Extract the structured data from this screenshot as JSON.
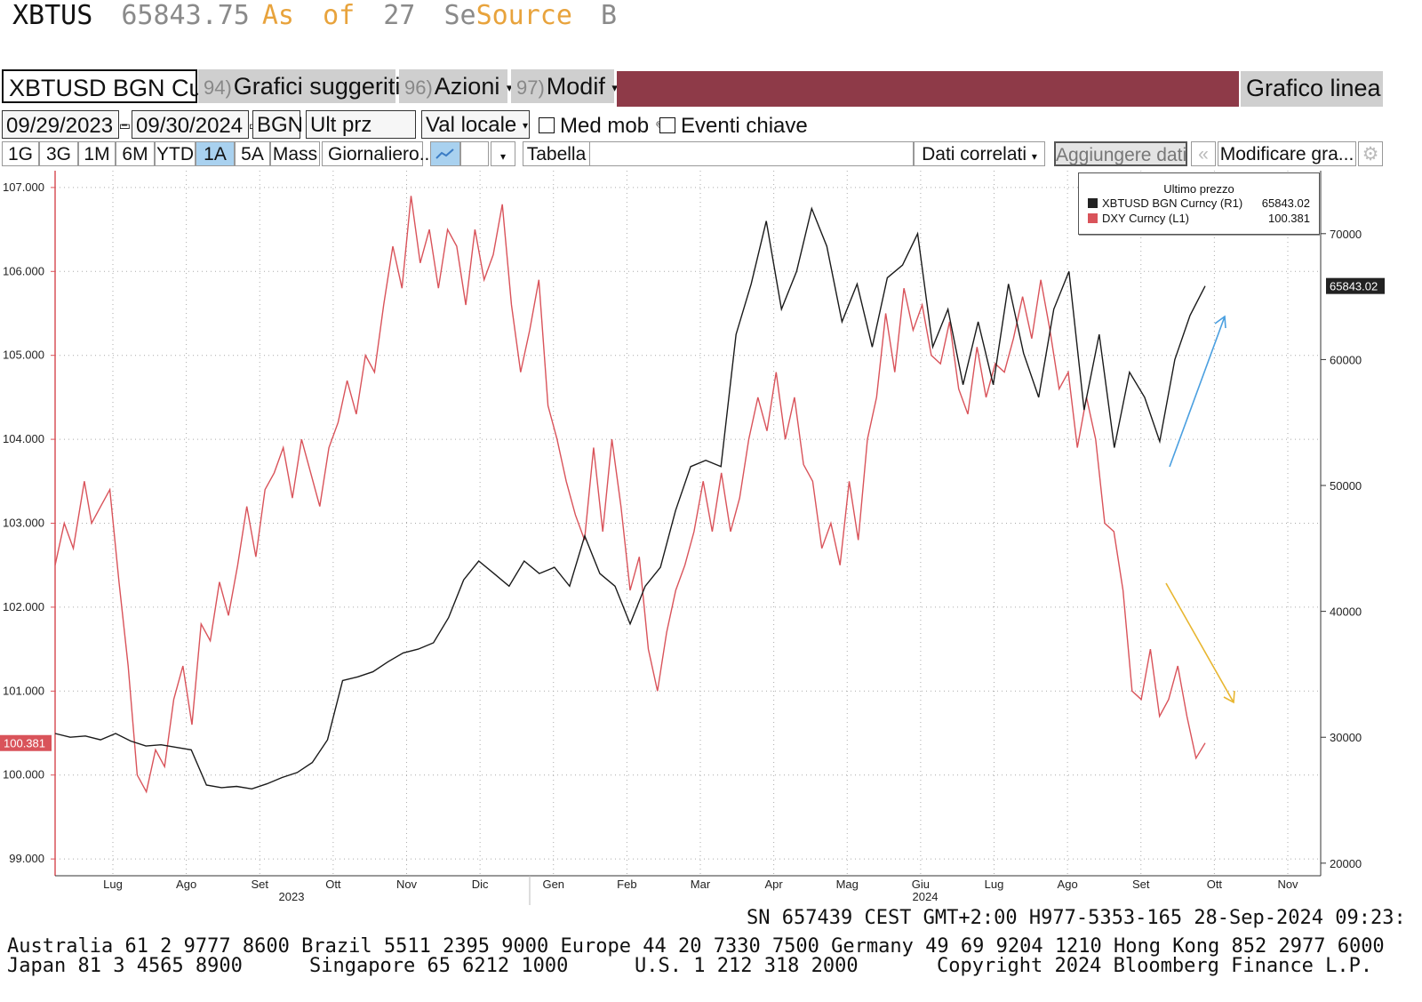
{
  "ticker": {
    "symbol": "XBTUS",
    "price": "65843.75",
    "as": "As",
    "of": "of",
    "day": "27",
    "se": "Se",
    "source": "Source",
    "b": "B"
  },
  "toolbar": {
    "security": "XBTUSD BGN Curncy",
    "suggest_num": "94)",
    "suggest_label": "Grafici suggeriti",
    "azioni_num": "96)",
    "azioni_label": "Azioni",
    "modif_num": "97)",
    "modif_label": "Modif",
    "chart_type": "Grafico linea",
    "start_date": "09/29/2023",
    "date_sep": "-",
    "end_date": "09/30/2024",
    "source": "BGN",
    "field": "Ult prz",
    "currency": "Val locale",
    "moving_avg": "Med mob",
    "key_events": "Eventi chiave",
    "ranges": [
      "1G",
      "3G",
      "1M",
      "6M",
      "YTD",
      "1A",
      "5A",
      "Mass"
    ],
    "selected_range": "1A",
    "period": "Giornaliero...",
    "table": "Tabella",
    "related": "Dati correlati",
    "add_data": "Aggiungere dati",
    "edit_chart": "Modificare gra..."
  },
  "legend": {
    "title": "Ultimo prezzo",
    "items": [
      {
        "label": "XBTUSD BGN Curncy  (R1)",
        "value": "65843.02",
        "color": "#222222"
      },
      {
        "label": "DXY Curncy  (L1)",
        "value": "100.381",
        "color": "#d9535a"
      }
    ]
  },
  "chart_data": {
    "type": "line",
    "left_axis": {
      "ticks": [
        "107.000",
        "106.000",
        "105.000",
        "104.000",
        "103.000",
        "102.000",
        "101.000",
        "100.000",
        "99.000"
      ],
      "range": [
        98.8,
        107.2
      ],
      "last_label": "100.381",
      "last_value": 100.381
    },
    "right_axis": {
      "ticks": [
        "70000",
        "60000",
        "50000",
        "40000",
        "30000",
        "20000"
      ],
      "range": [
        19000,
        75000
      ],
      "last_label": "65843.02",
      "last_value": 65843.02
    },
    "months": [
      "Lug",
      "Ago",
      "Set",
      "Ott",
      "Nov",
      "Dic",
      "Gen",
      "Feb",
      "Mar",
      "Apr",
      "Mag",
      "Giu",
      "Lug",
      "Ago",
      "Set",
      "Ott",
      "Nov"
    ],
    "years": [
      "2023",
      "2024"
    ],
    "grid": true,
    "legend_position": "top-right",
    "series": [
      {
        "name": "DXY Curncy",
        "color": "#d9535a",
        "axis": "left",
        "points": [
          [
            0,
            102.5
          ],
          [
            0.5,
            103.0
          ],
          [
            1,
            102.7
          ],
          [
            1.6,
            103.5
          ],
          [
            2,
            103.0
          ],
          [
            2.5,
            103.2
          ],
          [
            3,
            103.4
          ],
          [
            3.5,
            102.3
          ],
          [
            4,
            101.3
          ],
          [
            4.5,
            100.0
          ],
          [
            5,
            99.8
          ],
          [
            5.5,
            100.3
          ],
          [
            6,
            100.1
          ],
          [
            6.5,
            100.9
          ],
          [
            7,
            101.3
          ],
          [
            7.5,
            100.6
          ],
          [
            8,
            101.8
          ],
          [
            8.5,
            101.6
          ],
          [
            9,
            102.3
          ],
          [
            9.5,
            101.9
          ],
          [
            10,
            102.5
          ],
          [
            10.5,
            103.2
          ],
          [
            11,
            102.6
          ],
          [
            11.5,
            103.4
          ],
          [
            12,
            103.6
          ],
          [
            12.5,
            103.9
          ],
          [
            13,
            103.3
          ],
          [
            13.5,
            104.0
          ],
          [
            14,
            103.6
          ],
          [
            14.5,
            103.2
          ],
          [
            15,
            103.9
          ],
          [
            15.5,
            104.2
          ],
          [
            16,
            104.7
          ],
          [
            16.5,
            104.3
          ],
          [
            17,
            105.0
          ],
          [
            17.5,
            104.8
          ],
          [
            18,
            105.6
          ],
          [
            18.5,
            106.3
          ],
          [
            19,
            105.8
          ],
          [
            19.5,
            106.9
          ],
          [
            20,
            106.1
          ],
          [
            20.5,
            106.5
          ],
          [
            21,
            105.8
          ],
          [
            21.5,
            106.5
          ],
          [
            22,
            106.3
          ],
          [
            22.5,
            105.6
          ],
          [
            23,
            106.5
          ],
          [
            23.5,
            105.9
          ],
          [
            24,
            106.2
          ],
          [
            24.5,
            106.8
          ],
          [
            25,
            105.6
          ],
          [
            25.5,
            104.8
          ],
          [
            26,
            105.3
          ],
          [
            26.5,
            105.9
          ],
          [
            27,
            104.4
          ],
          [
            27.5,
            104.0
          ],
          [
            28,
            103.5
          ],
          [
            28.5,
            103.1
          ],
          [
            29,
            102.8
          ],
          [
            29.5,
            103.9
          ],
          [
            30,
            102.9
          ],
          [
            30.5,
            104.0
          ],
          [
            31,
            103.2
          ],
          [
            31.5,
            102.2
          ],
          [
            32,
            102.6
          ],
          [
            32.5,
            101.5
          ],
          [
            33,
            101.0
          ],
          [
            33.5,
            101.7
          ],
          [
            34,
            102.2
          ],
          [
            34.5,
            102.5
          ],
          [
            35,
            102.9
          ],
          [
            35.5,
            103.5
          ],
          [
            36,
            102.9
          ],
          [
            36.5,
            103.6
          ],
          [
            37,
            102.9
          ],
          [
            37.5,
            103.3
          ],
          [
            38,
            104.0
          ],
          [
            38.5,
            104.5
          ],
          [
            39,
            104.1
          ],
          [
            39.5,
            104.8
          ],
          [
            40,
            104.0
          ],
          [
            40.5,
            104.5
          ],
          [
            41,
            103.7
          ],
          [
            41.5,
            103.5
          ],
          [
            42,
            102.7
          ],
          [
            42.5,
            103.0
          ],
          [
            43,
            102.5
          ],
          [
            43.5,
            103.5
          ],
          [
            44,
            102.8
          ],
          [
            44.5,
            104.0
          ],
          [
            45,
            104.5
          ],
          [
            45.5,
            105.5
          ],
          [
            46,
            104.8
          ],
          [
            46.5,
            105.8
          ],
          [
            47,
            105.3
          ],
          [
            47.5,
            105.6
          ],
          [
            48,
            105.0
          ],
          [
            48.5,
            104.9
          ],
          [
            49,
            105.4
          ],
          [
            49.5,
            104.6
          ],
          [
            50,
            104.3
          ],
          [
            50.5,
            105.1
          ],
          [
            51,
            104.5
          ],
          [
            51.5,
            104.9
          ],
          [
            52,
            104.8
          ],
          [
            52.5,
            105.2
          ],
          [
            53,
            105.7
          ],
          [
            53.5,
            105.2
          ],
          [
            54,
            105.9
          ],
          [
            54.5,
            105.3
          ],
          [
            55,
            104.6
          ],
          [
            55.5,
            104.8
          ],
          [
            56,
            103.9
          ],
          [
            56.5,
            104.5
          ],
          [
            57,
            104.0
          ],
          [
            57.5,
            103.0
          ],
          [
            58,
            102.9
          ],
          [
            58.5,
            102.2
          ],
          [
            59,
            101.0
          ],
          [
            59.5,
            100.9
          ],
          [
            60,
            101.5
          ],
          [
            60.5,
            100.7
          ],
          [
            61,
            100.9
          ],
          [
            61.5,
            101.3
          ],
          [
            62,
            100.7
          ],
          [
            62.5,
            100.2
          ],
          [
            63,
            100.381
          ]
        ]
      },
      {
        "name": "XBTUSD BGN Curncy",
        "color": "#1a1a1a",
        "axis": "right",
        "points": [
          [
            0,
            30300
          ],
          [
            1,
            30000
          ],
          [
            2,
            30100
          ],
          [
            3,
            29800
          ],
          [
            4,
            30300
          ],
          [
            5,
            29700
          ],
          [
            6,
            29300
          ],
          [
            7,
            29400
          ],
          [
            8,
            29200
          ],
          [
            9,
            29000
          ],
          [
            10,
            26200
          ],
          [
            11,
            26000
          ],
          [
            12,
            26100
          ],
          [
            13,
            25900
          ],
          [
            14,
            26300
          ],
          [
            15,
            26800
          ],
          [
            16,
            27200
          ],
          [
            17,
            28000
          ],
          [
            18,
            29800
          ],
          [
            19,
            34500
          ],
          [
            20,
            34800
          ],
          [
            21,
            35200
          ],
          [
            22,
            36000
          ],
          [
            23,
            36700
          ],
          [
            24,
            37000
          ],
          [
            25,
            37500
          ],
          [
            26,
            39500
          ],
          [
            27,
            42500
          ],
          [
            28,
            44000
          ],
          [
            29,
            43000
          ],
          [
            30,
            42000
          ],
          [
            31,
            44000
          ],
          [
            32,
            43000
          ],
          [
            33,
            43500
          ],
          [
            34,
            42000
          ],
          [
            35,
            46000
          ],
          [
            36,
            43000
          ],
          [
            37,
            42000
          ],
          [
            38,
            39000
          ],
          [
            39,
            42000
          ],
          [
            40,
            43500
          ],
          [
            41,
            48000
          ],
          [
            42,
            51500
          ],
          [
            43,
            52000
          ],
          [
            44,
            51500
          ],
          [
            45,
            62000
          ],
          [
            46,
            66000
          ],
          [
            47,
            71000
          ],
          [
            48,
            64000
          ],
          [
            49,
            67000
          ],
          [
            50,
            72000
          ],
          [
            51,
            69000
          ],
          [
            52,
            63000
          ],
          [
            53,
            66000
          ],
          [
            54,
            61000
          ],
          [
            55,
            66500
          ],
          [
            56,
            67500
          ],
          [
            57,
            70000
          ],
          [
            58,
            61000
          ],
          [
            59,
            64000
          ],
          [
            60,
            58000
          ],
          [
            61,
            63000
          ],
          [
            62,
            58000
          ],
          [
            63,
            66000
          ],
          [
            64,
            60500
          ],
          [
            65,
            57000
          ],
          [
            66,
            64000
          ],
          [
            67,
            67000
          ],
          [
            68,
            56000
          ],
          [
            69,
            62000
          ],
          [
            70,
            53000
          ],
          [
            71,
            59000
          ],
          [
            72,
            57000
          ],
          [
            73,
            53500
          ],
          [
            74,
            60000
          ],
          [
            75,
            63500
          ],
          [
            76,
            65843.02
          ]
        ]
      }
    ]
  },
  "footer": {
    "session": "SN 657439 CEST  GMT+2:00 H977-5353-165 28-Sep-2024 09:23:",
    "contacts1": "Australia 61 2 9777 8600 Brazil 5511 2395 9000 Europe 44 20 7330 7500 Germany 49 69 9204 1210 Hong Kong 852 2977 6000",
    "c2a": "Japan 81 3 4565 8900",
    "c2b": "Singapore 65 6212 1000",
    "c2c": "U.S. 1 212 318 2000",
    "c2d": "Copyright 2024 Bloomberg Finance L.P."
  }
}
